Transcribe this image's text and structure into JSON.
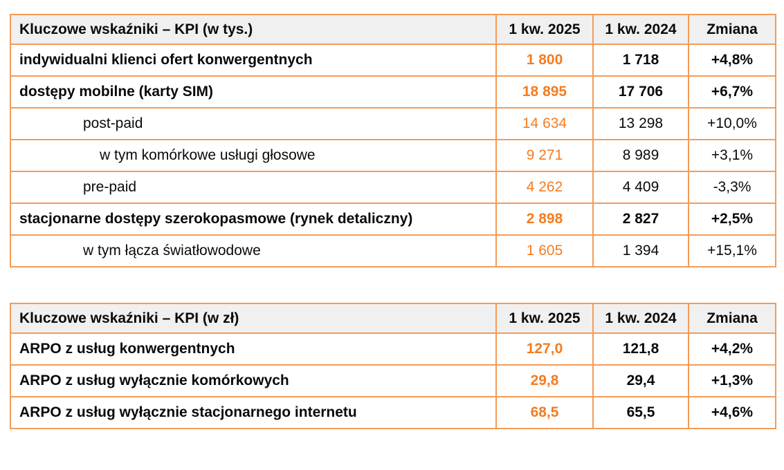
{
  "colors": {
    "accent": "#F47C20",
    "border": "#F49B57",
    "header_bg": "#F0F0F0",
    "text": "#0A0A0A"
  },
  "tables": [
    {
      "title": "Kluczowe wskaźniki – KPI (w tys.)",
      "columns": [
        "1 kw. 2025",
        "1 kw. 2024",
        "Zmiana"
      ],
      "rows": [
        {
          "label": "indywidualni klienci ofert konwergentnych",
          "v2025": "1 800",
          "v2024": "1 718",
          "change": "+4,8%",
          "bold": true,
          "indent": 0
        },
        {
          "label": "dostępy mobilne (karty SIM)",
          "v2025": "18 895",
          "v2024": "17 706",
          "change": "+6,7%",
          "bold": true,
          "indent": 0
        },
        {
          "label": "post-paid",
          "v2025": "14 634",
          "v2024": "13 298",
          "change": "+10,0%",
          "bold": false,
          "indent": 1
        },
        {
          "label": "w tym komórkowe usługi głosowe",
          "v2025": "9 271",
          "v2024": "8 989",
          "change": "+3,1%",
          "bold": false,
          "indent": 2
        },
        {
          "label": "pre-paid",
          "v2025": "4 262",
          "v2024": "4 409",
          "change": "-3,3%",
          "bold": false,
          "indent": 1
        },
        {
          "label": "stacjonarne dostępy szerokopasmowe (rynek detaliczny)",
          "v2025": "2 898",
          "v2024": "2 827",
          "change": "+2,5%",
          "bold": true,
          "indent": 0
        },
        {
          "label": "w tym łącza światłowodowe",
          "v2025": "1 605",
          "v2024": "1 394",
          "change": "+15,1%",
          "bold": false,
          "indent": 1
        }
      ]
    },
    {
      "title": "Kluczowe wskaźniki – KPI (w zł)",
      "columns": [
        "1 kw. 2025",
        "1 kw. 2024",
        "Zmiana"
      ],
      "rows": [
        {
          "label": "ARPO z usług konwergentnych",
          "v2025": "127,0",
          "v2024": "121,8",
          "change": "+4,2%",
          "bold": true,
          "indent": 0
        },
        {
          "label": "ARPO z usług wyłącznie komórkowych",
          "v2025": "29,8",
          "v2024": "29,4",
          "change": "+1,3%",
          "bold": true,
          "indent": 0
        },
        {
          "label": "ARPO z usług wyłącznie stacjonarnego internetu",
          "v2025": "68,5",
          "v2024": "65,5",
          "change": "+4,6%",
          "bold": true,
          "indent": 0
        }
      ]
    }
  ]
}
